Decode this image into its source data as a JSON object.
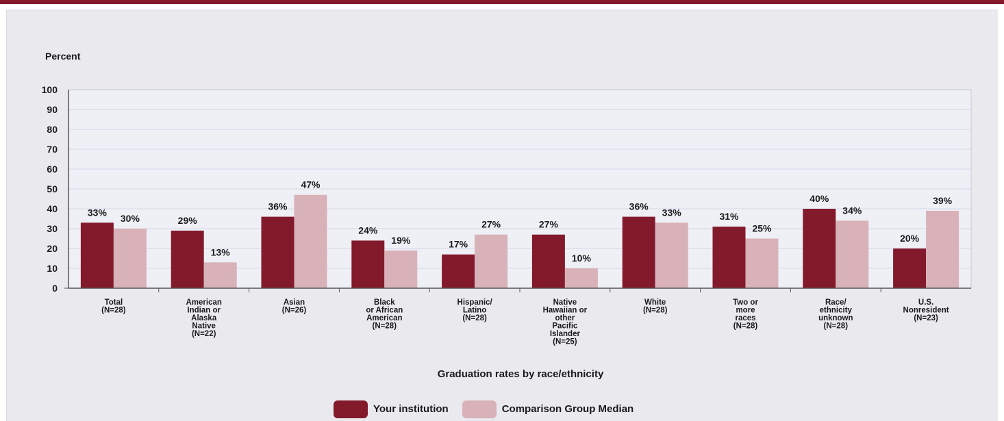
{
  "colors": {
    "your_institution": "#831a2c",
    "comparison": "#d8b2b8",
    "grid": "#d6d6e6",
    "axis": "#555555"
  },
  "legend": {
    "items": [
      {
        "label": "Your institution",
        "color": "#831a2c"
      },
      {
        "label": "Comparison Group Median",
        "color": "#d8b2b8"
      }
    ]
  },
  "chart_data": {
    "type": "bar",
    "ylabel": "Percent",
    "xlabel": "Graduation rates by race/ethnicity",
    "ylim": [
      0,
      100
    ],
    "yticks": [
      0,
      10,
      20,
      30,
      40,
      50,
      60,
      70,
      80,
      90,
      100
    ],
    "grid": true,
    "legend_position": "bottom",
    "categories": [
      [
        "Total",
        "(N=28)"
      ],
      [
        "American",
        "Indian or",
        "Alaska",
        "Native",
        "(N=22)"
      ],
      [
        "Asian",
        "(N=26)"
      ],
      [
        "Black",
        "or African",
        "American",
        "(N=28)"
      ],
      [
        "Hispanic/",
        "Latino",
        "(N=28)"
      ],
      [
        "Native",
        "Hawaiian or",
        "other",
        "Pacific",
        "Islander",
        "(N=25)"
      ],
      [
        "White",
        "(N=28)"
      ],
      [
        "Two or",
        "more",
        "races",
        "(N=28)"
      ],
      [
        "Race/",
        "ethnicity",
        "unknown",
        "(N=28)"
      ],
      [
        "U.S.",
        "Nonresident",
        "(N=23)"
      ]
    ],
    "series": [
      {
        "name": "Your institution",
        "values": [
          33,
          29,
          36,
          24,
          17,
          27,
          36,
          31,
          40,
          20
        ],
        "labels": [
          "33%",
          "29%",
          "36%",
          "24%",
          "17%",
          "27%",
          "36%",
          "31%",
          "40%",
          "20%"
        ]
      },
      {
        "name": "Comparison Group Median",
        "values": [
          30,
          13,
          47,
          19,
          27,
          10,
          33,
          25,
          34,
          39
        ],
        "labels": [
          "30%",
          "13%",
          "47%",
          "19%",
          "27%",
          "10%",
          "33%",
          "25%",
          "34%",
          "39%"
        ]
      }
    ]
  }
}
